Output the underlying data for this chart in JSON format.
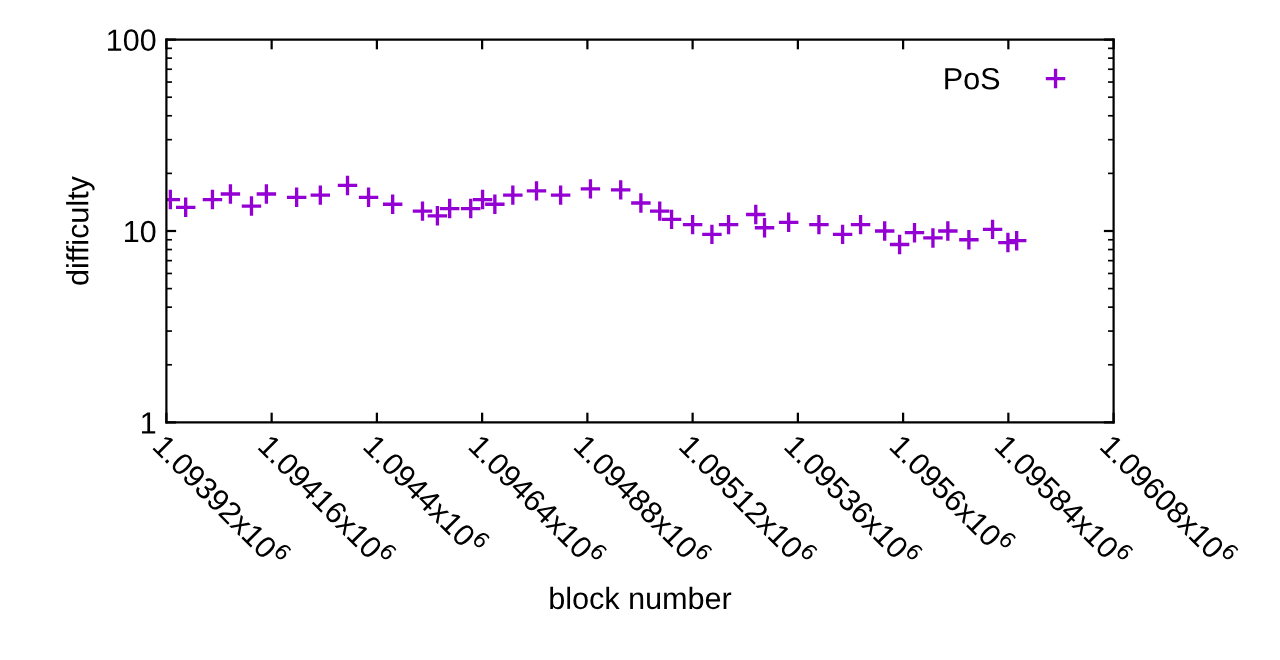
{
  "chart_data": {
    "type": "scatter",
    "xlabel": "block number",
    "ylabel": "difficulty",
    "x": [
      1093929,
      1093964,
      1094025,
      1094066,
      1094114,
      1094148,
      1094217,
      1094271,
      1094333,
      1094381,
      1094436,
      1094504,
      1094538,
      1094566,
      1094614,
      1094641,
      1094669,
      1094710,
      1094764,
      1094819,
      1094887,
      1094956,
      1095002,
      1095045,
      1095072,
      1095120,
      1095164,
      1095202,
      1095264,
      1095284,
      1095339,
      1095408,
      1095462,
      1095503,
      1095558,
      1095592,
      1095626,
      1095668,
      1095702,
      1095750,
      1095804,
      1095839,
      1095859
    ],
    "series": [
      {
        "name": "PoS",
        "color": "#9400d3",
        "values": [
          14.6,
          13.3,
          14.6,
          15.6,
          13.5,
          15.6,
          15.0,
          15.4,
          17.3,
          15.0,
          13.8,
          12.7,
          12.0,
          13.1,
          13.1,
          14.6,
          13.8,
          15.4,
          16.2,
          15.4,
          16.6,
          16.4,
          14.0,
          12.7,
          11.5,
          10.8,
          9.6,
          10.8,
          12.2,
          10.4,
          11.1,
          10.8,
          9.6,
          10.8,
          10.0,
          8.5,
          9.8,
          9.2,
          10.0,
          9.0,
          10.2,
          8.7,
          8.9
        ]
      }
    ],
    "log": "y",
    "ylim": [
      1,
      100
    ],
    "yticks": [
      1,
      10,
      100
    ],
    "xlim": [
      1093920,
      1096080
    ],
    "xticks": [
      {
        "value": 1093920,
        "label": "1.09392x10$^{6}$"
      },
      {
        "value": 1094160,
        "label": "1.09416x10$^{6}$"
      },
      {
        "value": 1094400,
        "label": "1.0944x10$^{6}$"
      },
      {
        "value": 1094640,
        "label": "1.09464x10$^{6}$"
      },
      {
        "value": 1094880,
        "label": "1.09488x10$^{6}$"
      },
      {
        "value": 1095120,
        "label": "1.09512x10$^{6}$"
      },
      {
        "value": 1095360,
        "label": "1.09536x10$^{6}$"
      },
      {
        "value": 1095600,
        "label": "1.0956x10$^{6}$"
      },
      {
        "value": 1095840,
        "label": "1.09584x10$^{6}$"
      },
      {
        "value": 1096080,
        "label": "1.09608x10$^{6}$"
      }
    ],
    "marker": "cross",
    "legend": "top right",
    "grid": false
  }
}
